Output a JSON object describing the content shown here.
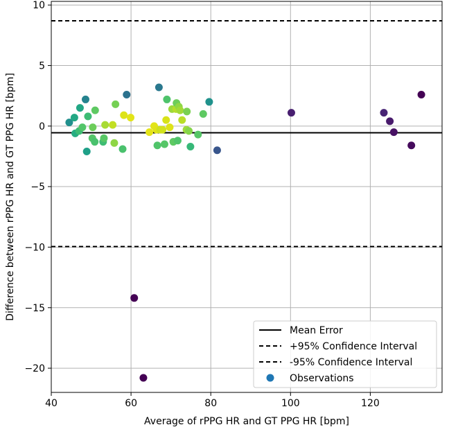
{
  "chart_data": {
    "type": "scatter",
    "title": "",
    "xlabel": "Average of rPPG HR and GT PPG HR [bpm]",
    "ylabel": "Difference between rPPG HR and GT PPG HR [bpm]",
    "xlim": [
      40,
      138
    ],
    "ylim": [
      -22,
      10.3
    ],
    "xticks": [
      40,
      60,
      80,
      100,
      120
    ],
    "yticks": [
      10,
      5,
      0,
      -5,
      -10,
      -15,
      -20
    ],
    "xtick_labels": [
      "40",
      "60",
      "80",
      "100",
      "120"
    ],
    "ytick_labels": [
      "10",
      "5",
      "0",
      "−5",
      "−10",
      "−15",
      "−20"
    ],
    "grid": true,
    "mean_error": -0.55,
    "upper_limit": 8.7,
    "lower_limit": -9.95,
    "legend": {
      "placement": "lower-right",
      "entries": [
        {
          "label": "Mean Error",
          "style": "solid-line"
        },
        {
          "label": "+95% Confidence Interval",
          "style": "dashed-line"
        },
        {
          "label": "-95% Confidence Interval",
          "style": "dashed-line"
        },
        {
          "label": "Observations",
          "style": "marker",
          "color": "#1f77b4"
        }
      ]
    },
    "colors": {
      "mean_line": "#000000",
      "limit_lines": "#000000",
      "grid": "#b0b0b0"
    },
    "points": [
      {
        "x": 44.5,
        "y": 0.3,
        "color": "#21908d"
      },
      {
        "x": 45.8,
        "y": 0.7,
        "color": "#23a884"
      },
      {
        "x": 46.0,
        "y": -0.6,
        "color": "#27ad81"
      },
      {
        "x": 47.0,
        "y": -0.4,
        "color": "#3ebc74"
      },
      {
        "x": 47.2,
        "y": 1.5,
        "color": "#22a785"
      },
      {
        "x": 47.8,
        "y": -0.1,
        "color": "#52c569"
      },
      {
        "x": 48.6,
        "y": 2.2,
        "color": "#25838e"
      },
      {
        "x": 48.9,
        "y": -2.1,
        "color": "#1fa088"
      },
      {
        "x": 49.2,
        "y": 0.8,
        "color": "#3dbc74"
      },
      {
        "x": 50.4,
        "y": -0.1,
        "color": "#6ccd5a"
      },
      {
        "x": 50.3,
        "y": -1.0,
        "color": "#54c568"
      },
      {
        "x": 50.9,
        "y": -1.3,
        "color": "#4ac16d"
      },
      {
        "x": 51.0,
        "y": 1.3,
        "color": "#5ec962"
      },
      {
        "x": 53.0,
        "y": -1.3,
        "color": "#3fbc73"
      },
      {
        "x": 53.2,
        "y": -1.0,
        "color": "#58c765"
      },
      {
        "x": 53.5,
        "y": 0.1,
        "color": "#a8db34"
      },
      {
        "x": 55.4,
        "y": 0.1,
        "color": "#c2df23"
      },
      {
        "x": 55.8,
        "y": -1.4,
        "color": "#8ed645"
      },
      {
        "x": 56.1,
        "y": 1.8,
        "color": "#75d054"
      },
      {
        "x": 57.9,
        "y": -1.9,
        "color": "#4ac16d"
      },
      {
        "x": 58.2,
        "y": 0.9,
        "color": "#dde318"
      },
      {
        "x": 58.9,
        "y": 2.6,
        "color": "#2c728e"
      },
      {
        "x": 59.9,
        "y": 0.7,
        "color": "#e2e418"
      },
      {
        "x": 60.8,
        "y": -14.2,
        "color": "#440154"
      },
      {
        "x": 63.1,
        "y": -20.8,
        "color": "#440154"
      },
      {
        "x": 64.6,
        "y": -0.5,
        "color": "#e5e419"
      },
      {
        "x": 65.8,
        "y": 0.0,
        "color": "#e2e418"
      },
      {
        "x": 66.4,
        "y": -0.3,
        "color": "#e0e318"
      },
      {
        "x": 66.6,
        "y": -1.6,
        "color": "#50c46a"
      },
      {
        "x": 67.0,
        "y": 3.2,
        "color": "#2a788e"
      },
      {
        "x": 67.3,
        "y": -0.3,
        "color": "#cde11d"
      },
      {
        "x": 67.9,
        "y": -0.3,
        "color": "#d2e21b"
      },
      {
        "x": 68.4,
        "y": -1.5,
        "color": "#56c667"
      },
      {
        "x": 68.8,
        "y": 0.5,
        "color": "#d8e219"
      },
      {
        "x": 69.0,
        "y": 2.2,
        "color": "#4ec36b"
      },
      {
        "x": 69.7,
        "y": -0.1,
        "color": "#dde318"
      },
      {
        "x": 70.3,
        "y": 1.4,
        "color": "#9dd93b"
      },
      {
        "x": 70.6,
        "y": -1.3,
        "color": "#5ec962"
      },
      {
        "x": 71.3,
        "y": 1.4,
        "color": "#b5de2b"
      },
      {
        "x": 71.4,
        "y": 1.9,
        "color": "#6ccd5a"
      },
      {
        "x": 71.7,
        "y": -1.2,
        "color": "#50c46a"
      },
      {
        "x": 72.0,
        "y": 1.6,
        "color": "#8fd744"
      },
      {
        "x": 72.3,
        "y": 1.3,
        "color": "#a2da37"
      },
      {
        "x": 72.8,
        "y": 0.5,
        "color": "#bade28"
      },
      {
        "x": 73.9,
        "y": -0.3,
        "color": "#9fda3a"
      },
      {
        "x": 74.0,
        "y": 1.2,
        "color": "#7ad151"
      },
      {
        "x": 74.5,
        "y": -0.4,
        "color": "#86d549"
      },
      {
        "x": 74.9,
        "y": -1.7,
        "color": "#37b878"
      },
      {
        "x": 76.8,
        "y": -0.7,
        "color": "#56c667"
      },
      {
        "x": 78.1,
        "y": 1.0,
        "color": "#5ec962"
      },
      {
        "x": 79.6,
        "y": 2.0,
        "color": "#20928c"
      },
      {
        "x": 81.6,
        "y": -2.0,
        "color": "#39568c"
      },
      {
        "x": 100.2,
        "y": 1.1,
        "color": "#481f70"
      },
      {
        "x": 123.4,
        "y": 1.1,
        "color": "#482475"
      },
      {
        "x": 124.9,
        "y": 0.4,
        "color": "#481a6c"
      },
      {
        "x": 125.9,
        "y": -0.5,
        "color": "#471164"
      },
      {
        "x": 130.3,
        "y": -1.6,
        "color": "#450a5c"
      },
      {
        "x": 132.8,
        "y": 2.6,
        "color": "#440154"
      }
    ]
  }
}
